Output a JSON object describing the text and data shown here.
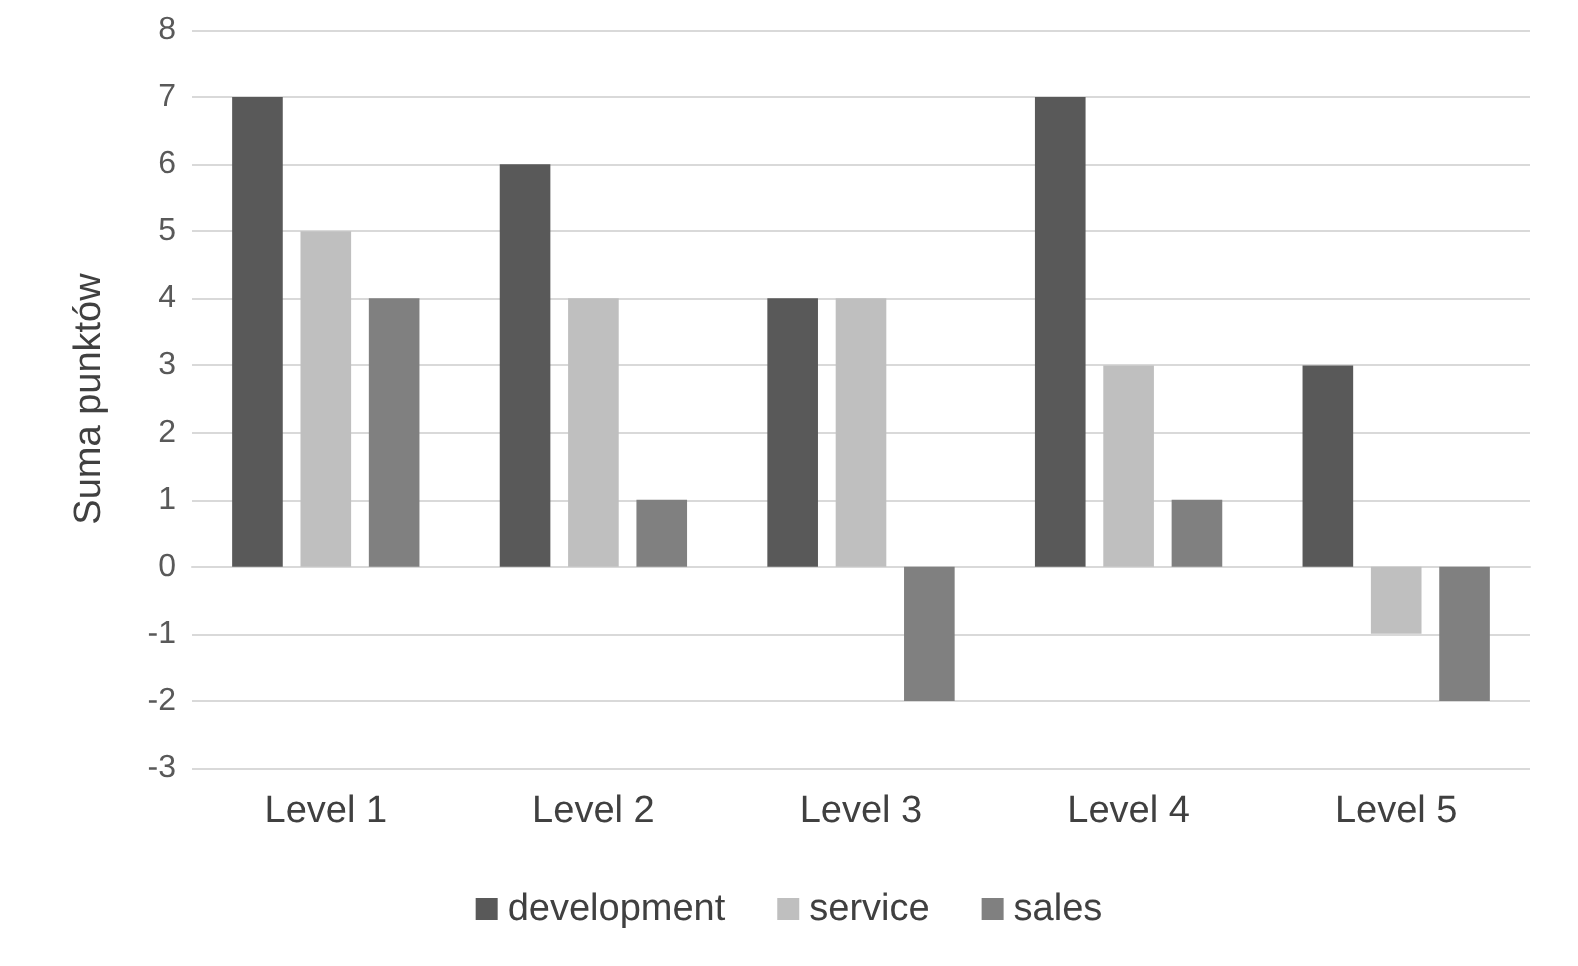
{
  "chart_data": {
    "type": "bar",
    "ylabel": "Suma punktów",
    "categories": [
      "Level 1",
      "Level 2",
      "Level 3",
      "Level 4",
      "Level 5"
    ],
    "series": [
      {
        "name": "development",
        "color": "#595959",
        "values": [
          7,
          6,
          4,
          7,
          3
        ]
      },
      {
        "name": "service",
        "color": "#bfbfbf",
        "values": [
          5,
          4,
          4,
          3,
          -1
        ]
      },
      {
        "name": "sales",
        "color": "#808080",
        "values": [
          4,
          1,
          -2,
          1,
          -2
        ]
      }
    ],
    "ylim": [
      -3,
      8
    ],
    "yticks": [
      -3,
      -2,
      -1,
      0,
      1,
      2,
      3,
      4,
      5,
      6,
      7,
      8
    ],
    "grid": "y",
    "legend": "bottom"
  }
}
